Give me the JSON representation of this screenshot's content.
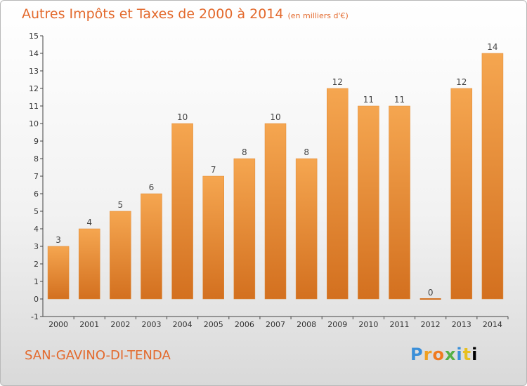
{
  "chart_data": {
    "type": "bar",
    "title": "Autres Impôts et Taxes de 2000 à 2014",
    "subtitle": "(en milliers d'€)",
    "categories": [
      "2000",
      "2001",
      "2002",
      "2003",
      "2004",
      "2005",
      "2006",
      "2007",
      "2008",
      "2009",
      "2010",
      "2011",
      "2012",
      "2013",
      "2014"
    ],
    "values": [
      3,
      4,
      5,
      6,
      10,
      7,
      8,
      10,
      8,
      12,
      11,
      11,
      0,
      12,
      14
    ],
    "value_labels": [
      "3",
      "4",
      "5",
      "6",
      "10",
      "7",
      "8",
      "10",
      "8",
      "12",
      "11",
      "11",
      "0",
      "12",
      "14"
    ],
    "yticks": [
      "-1",
      "0",
      "1",
      "2",
      "3",
      "4",
      "5",
      "6",
      "7",
      "8",
      "9",
      "10",
      "11",
      "12",
      "13",
      "14",
      "15"
    ],
    "ylim": [
      -1,
      15
    ],
    "grid": false,
    "bar_color": "#f0953a"
  },
  "footer": {
    "commune": "SAN-GAVINO-DI-TENDA",
    "logo_text": "Proxiti"
  }
}
